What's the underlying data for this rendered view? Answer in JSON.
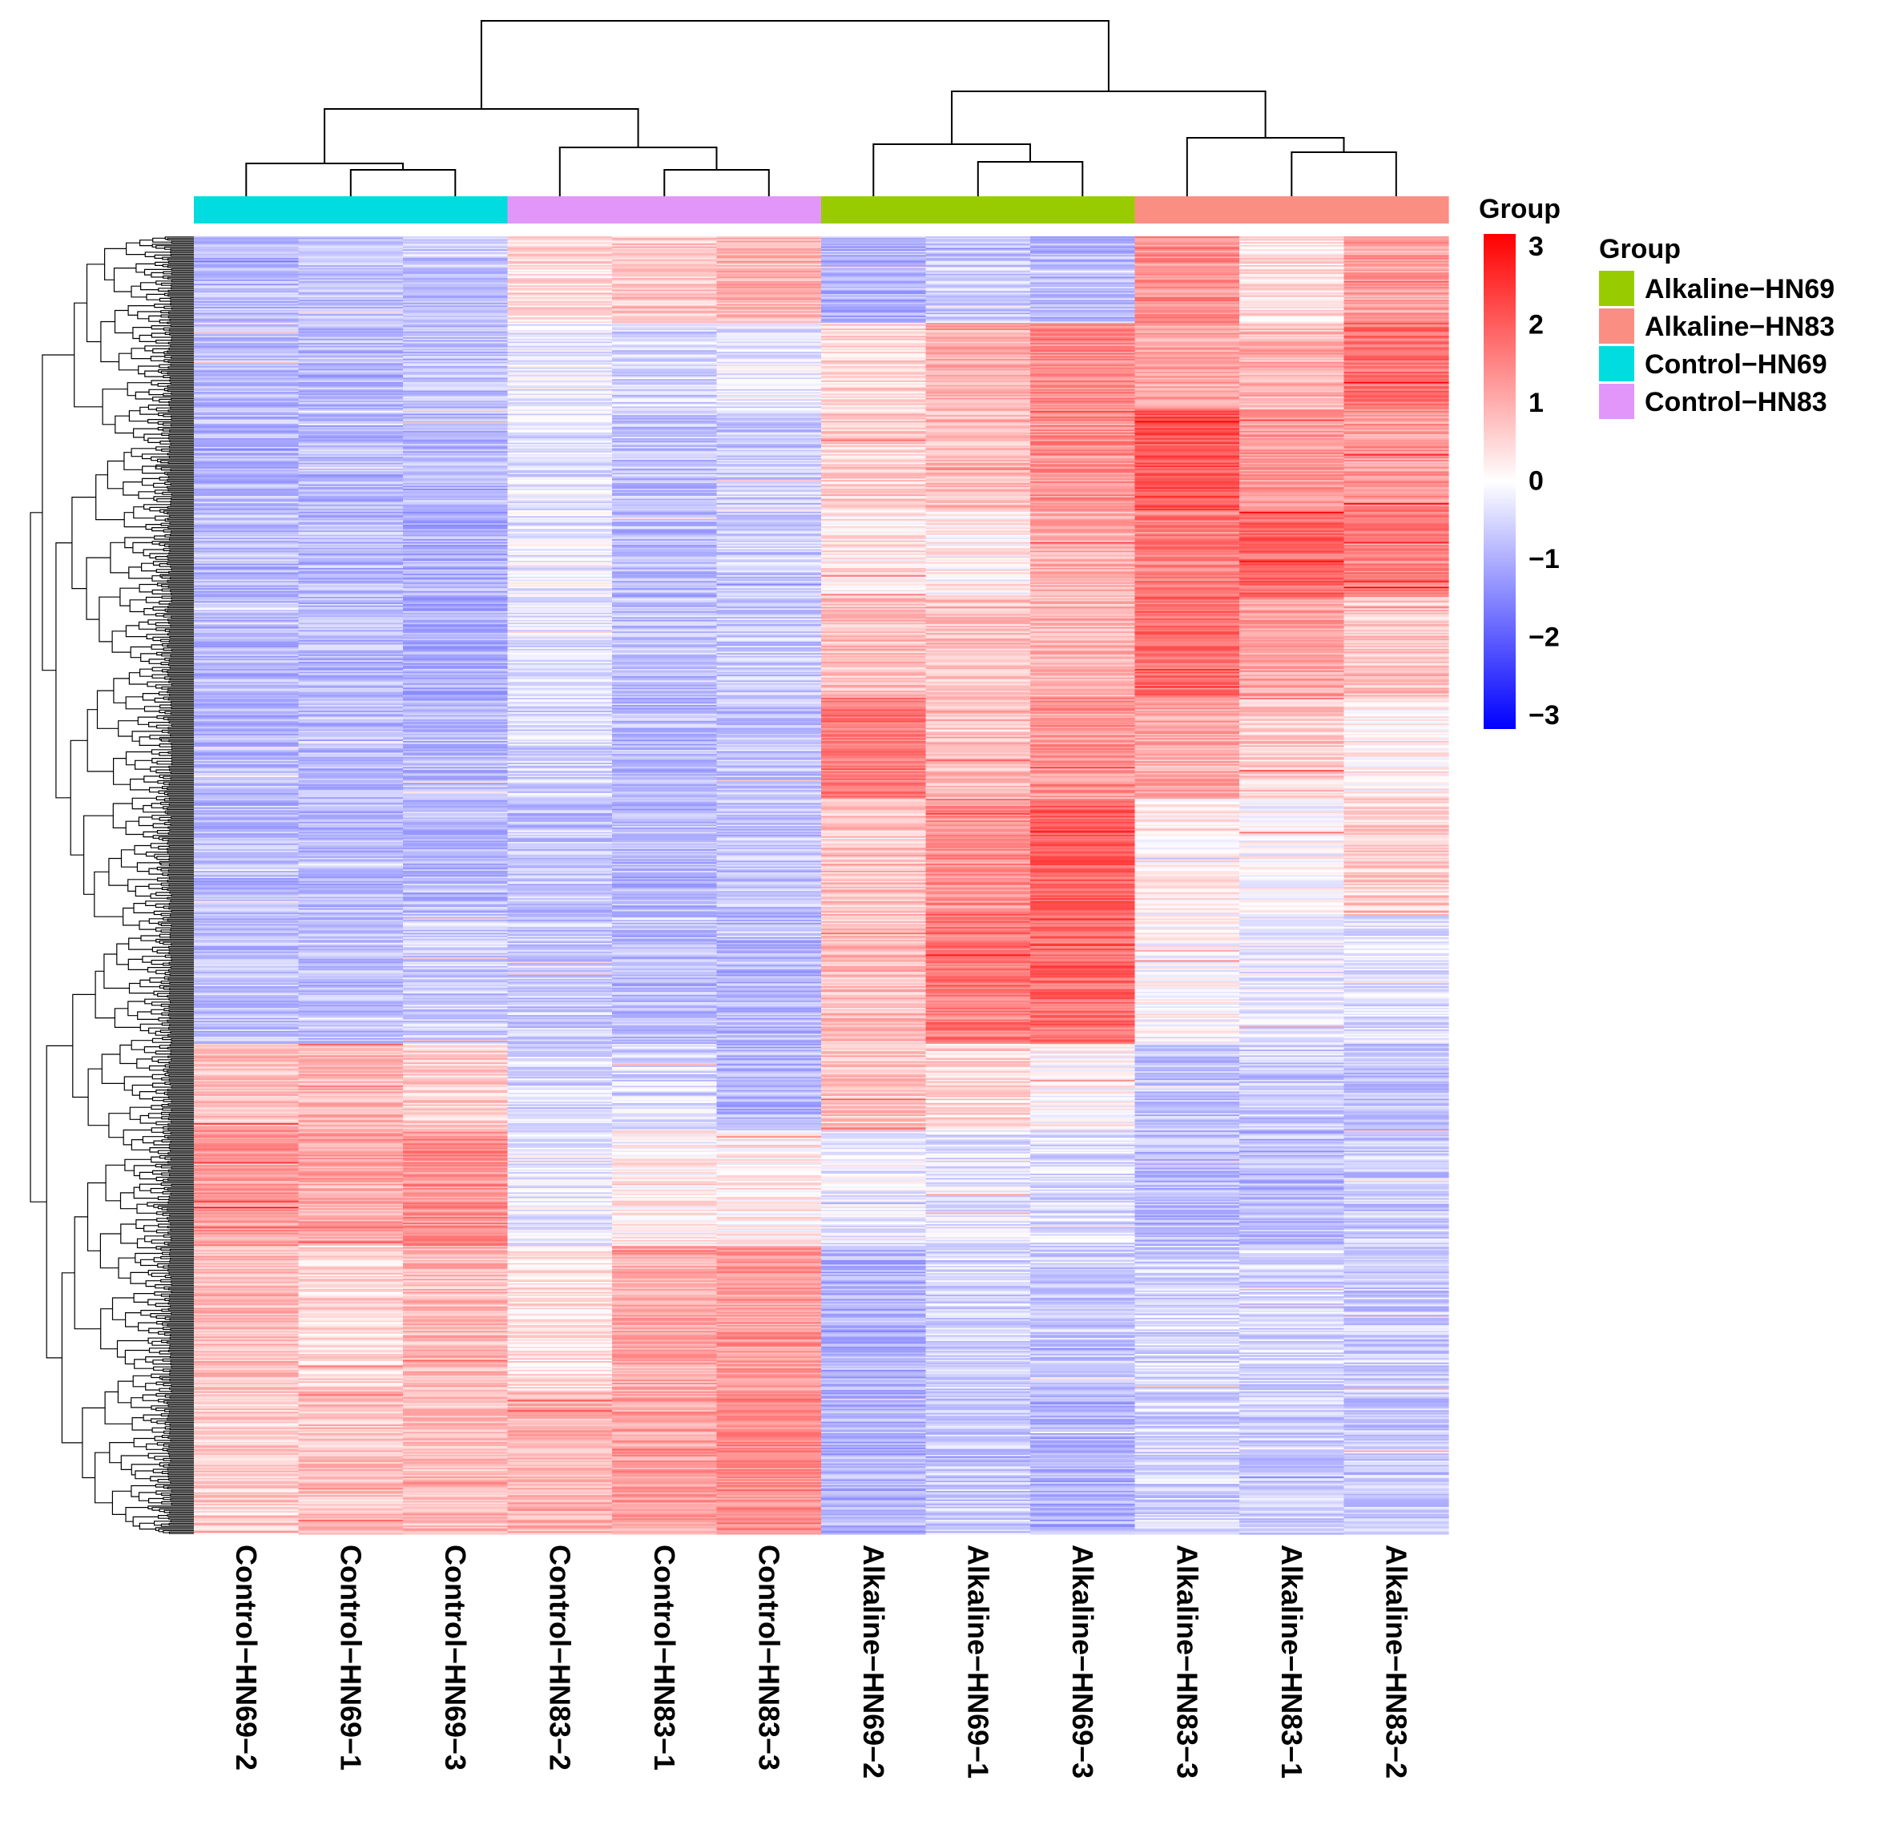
{
  "chart_data": {
    "type": "heatmap",
    "title": "",
    "columns": [
      "Control−HN69−2",
      "Control−HN69−1",
      "Control−HN69−3",
      "Control−HN83−2",
      "Control−HN83−1",
      "Control−HN83−3",
      "Alkaline−HN69−2",
      "Alkaline−HN69−1",
      "Alkaline−HN69−3",
      "Alkaline−HN83−3",
      "Alkaline−HN83−1",
      "Alkaline−HN83−2"
    ],
    "column_groups": [
      "Control−HN69",
      "Control−HN69",
      "Control−HN69",
      "Control−HN83",
      "Control−HN83",
      "Control−HN83",
      "Alkaline−HN69",
      "Alkaline−HN69",
      "Alkaline−HN69",
      "Alkaline−HN83",
      "Alkaline−HN83",
      "Alkaline−HN83"
    ],
    "row_blocks": [
      {
        "rows": 60,
        "values": [
          -0.8,
          -0.7,
          -0.7,
          0.4,
          0.7,
          0.9,
          -0.9,
          -0.6,
          -0.8,
          1.3,
          0.4,
          1.1
        ]
      },
      {
        "rows": 60,
        "values": [
          -0.8,
          -0.8,
          -0.7,
          -0.2,
          -0.5,
          -0.3,
          0.5,
          0.9,
          1.4,
          1.1,
          0.9,
          1.7
        ]
      },
      {
        "rows": 70,
        "values": [
          -0.8,
          -0.8,
          -0.8,
          -0.3,
          -0.7,
          -0.6,
          0.6,
          0.8,
          1.3,
          2.0,
          1.2,
          1.2
        ]
      },
      {
        "rows": 60,
        "values": [
          -0.8,
          -0.8,
          -0.9,
          -0.2,
          -0.8,
          -0.6,
          0.3,
          0.2,
          0.9,
          1.5,
          1.8,
          1.5
        ]
      },
      {
        "rows": 70,
        "values": [
          -0.8,
          -0.8,
          -0.9,
          -0.3,
          -0.7,
          -0.6,
          0.7,
          0.7,
          0.9,
          1.7,
          1.1,
          0.7
        ]
      },
      {
        "rows": 70,
        "values": [
          -0.8,
          -0.8,
          -0.8,
          -0.5,
          -0.8,
          -0.7,
          1.6,
          0.8,
          1.2,
          1.0,
          0.6,
          0.2
        ]
      },
      {
        "rows": 80,
        "values": [
          -0.8,
          -0.8,
          -0.8,
          -0.7,
          -0.8,
          -0.7,
          0.7,
          1.3,
          1.9,
          0.2,
          0.0,
          0.6
        ]
      },
      {
        "rows": 90,
        "values": [
          -0.7,
          -0.7,
          -0.6,
          -0.6,
          -0.8,
          -0.8,
          0.8,
          1.6,
          1.7,
          0.0,
          -0.2,
          -0.3
        ]
      },
      {
        "rows": 60,
        "values": [
          0.7,
          0.9,
          0.6,
          -0.4,
          -0.4,
          -0.8,
          0.7,
          0.5,
          0.1,
          -0.7,
          -0.6,
          -0.7
        ]
      },
      {
        "rows": 80,
        "values": [
          1.2,
          1.0,
          1.3,
          -0.2,
          0.2,
          0.2,
          -0.2,
          -0.3,
          -0.4,
          -0.8,
          -0.8,
          -0.6
        ]
      },
      {
        "rows": 100,
        "values": [
          0.8,
          0.5,
          0.8,
          0.4,
          1.0,
          1.2,
          -0.9,
          -0.5,
          -0.6,
          -0.5,
          -0.5,
          -0.6
        ]
      },
      {
        "rows": 100,
        "values": [
          0.6,
          0.7,
          0.8,
          0.9,
          1.1,
          1.4,
          -0.9,
          -0.6,
          -0.9,
          -0.5,
          -0.6,
          -0.6
        ]
      }
    ],
    "scale": {
      "min": -3,
      "max": 3,
      "colors": [
        "#0000ff",
        "#ffffff",
        "#ff0000"
      ]
    },
    "colorbar": {
      "title": "Group",
      "ticks": [
        "3",
        "2",
        "1",
        "0",
        "−1",
        "−2",
        "−3"
      ]
    },
    "legend": {
      "title": "Group",
      "position": "right",
      "entries": [
        {
          "label": "Alkaline−HN69",
          "color": "#99cc00"
        },
        {
          "label": "Alkaline−HN83",
          "color": "#fa8e83"
        },
        {
          "label": "Control−HN69",
          "color": "#00dce0"
        },
        {
          "label": "Control−HN83",
          "color": "#e396fa"
        }
      ]
    }
  }
}
